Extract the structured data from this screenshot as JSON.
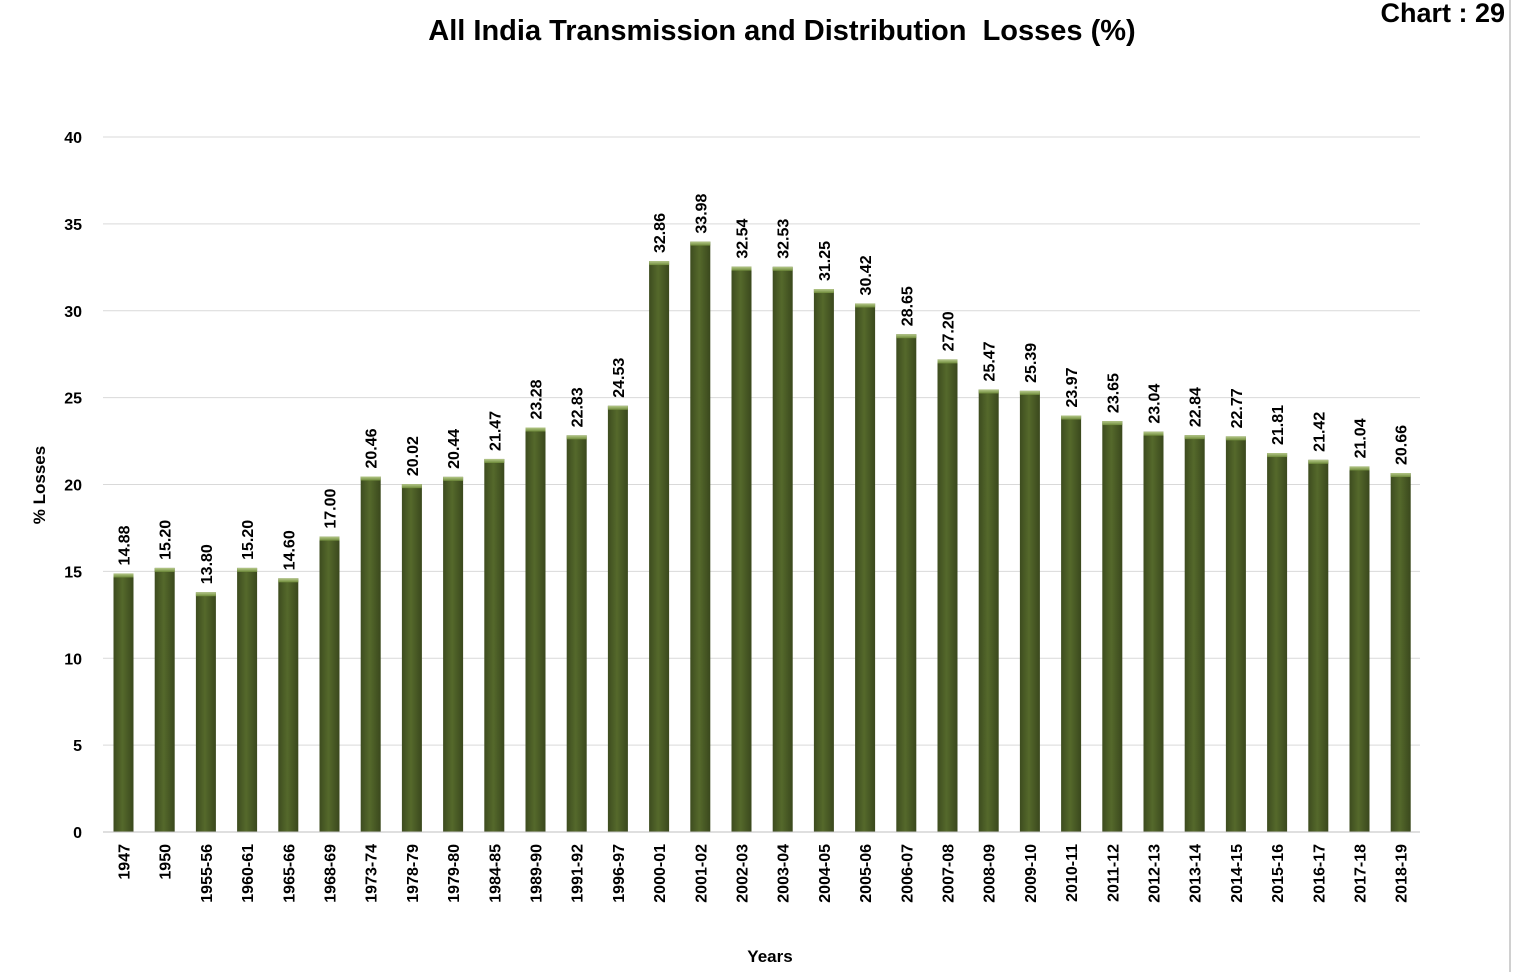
{
  "chart_number": "Chart : 29",
  "chart_data": {
    "type": "bar",
    "title": "All India Transmission and Distribution  Losses (%)",
    "xlabel": "Years",
    "ylabel": "% Losses",
    "ylim": [
      0,
      40
    ],
    "yticks": [
      0,
      5,
      10,
      15,
      20,
      25,
      30,
      35,
      40
    ],
    "grid": true,
    "bar_color": "#4f6228",
    "categories": [
      "1947",
      "1950",
      "1955-56",
      "1960-61",
      "1965-66",
      "1968-69",
      "1973-74",
      "1978-79",
      "1979-80",
      "1984-85",
      "1989-90",
      "1991-92",
      "1996-97",
      "2000-01",
      "2001-02",
      "2002-03",
      "2003-04",
      "2004-05",
      "2005-06",
      "2006-07",
      "2007-08",
      "2008-09",
      "2009-10",
      "2010-11",
      "2011-12",
      "2012-13",
      "2013-14",
      "2014-15",
      "2015-16",
      "2016-17",
      "2017-18",
      "2018-19"
    ],
    "values": [
      14.88,
      15.2,
      13.8,
      15.2,
      14.6,
      17.0,
      20.46,
      20.02,
      20.44,
      21.47,
      23.28,
      22.83,
      24.53,
      32.86,
      33.98,
      32.54,
      32.53,
      31.25,
      30.42,
      28.65,
      27.2,
      25.47,
      25.39,
      23.97,
      23.65,
      23.04,
      22.84,
      22.77,
      21.81,
      21.42,
      21.04,
      20.66
    ],
    "data_labels": [
      "14.88",
      "15.20",
      "13.80",
      "15.20",
      "14.60",
      "17.00",
      "20.46",
      "20.02",
      "20.44",
      "21.47",
      "23.28",
      "22.83",
      "24.53",
      "32.86",
      "33.98",
      "32.54",
      "32.53",
      "31.25",
      "30.42",
      "28.65",
      "27.20",
      "25.47",
      "25.39",
      "23.97",
      "23.65",
      "23.04",
      "22.84",
      "22.77",
      "21.81",
      "21.42",
      "21.04",
      "20.66"
    ]
  }
}
